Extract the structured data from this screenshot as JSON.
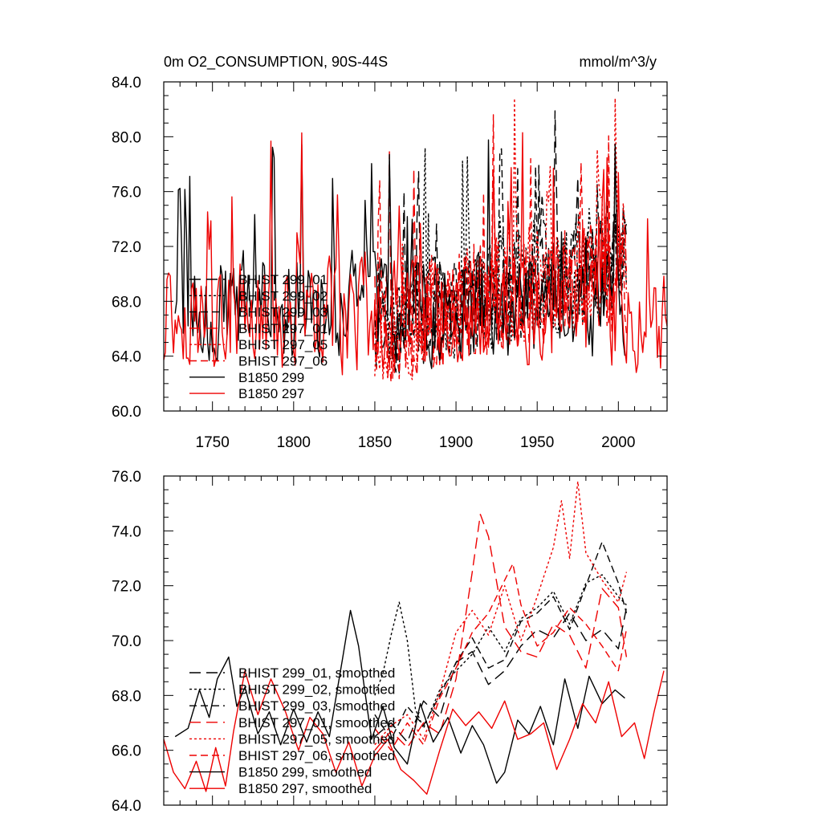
{
  "chart_data": [
    {
      "type": "line",
      "title_left": "0m O2_CONSUMPTION, 90S-44S",
      "title_right": "mmol/m^3/y",
      "xlim": [
        1720,
        2030
      ],
      "ylim": [
        60,
        84
      ],
      "xticks": [
        1750,
        1800,
        1850,
        1900,
        1950,
        2000
      ],
      "yticks": [
        60,
        64,
        68,
        72,
        76,
        80,
        84
      ],
      "ytick_labels": [
        "60.0",
        "64.0",
        "68.0",
        "72.0",
        "76.0",
        "80.0",
        "84.0"
      ],
      "xtick_labels": [
        "1750",
        "1800",
        "1850",
        "1900",
        "1950",
        "2000"
      ],
      "legend_position": "lower-left",
      "series": [
        {
          "name": "BHIST 299_01",
          "label": "BHIST 299_01",
          "color": "#000000",
          "dash": "long",
          "start": 1850,
          "end": 2005,
          "base": 66.5,
          "trend": 4.0,
          "amp": 3.2,
          "seed": 11
        },
        {
          "name": "BHIST 299_02",
          "label": "BHIST 299_02",
          "color": "#000000",
          "dash": "dot",
          "start": 1850,
          "end": 2005,
          "base": 66.5,
          "trend": 4.5,
          "amp": 3.2,
          "seed": 23
        },
        {
          "name": "BHIST 299_03",
          "label": "BHIST 299_03",
          "color": "#000000",
          "dash": "medium",
          "start": 1850,
          "end": 2005,
          "base": 66.5,
          "trend": 4.0,
          "amp": 3.2,
          "seed": 37
        },
        {
          "name": "BHIST 297_01",
          "label": "BHIST 297_01",
          "color": "#ee0000",
          "dash": "long",
          "start": 1850,
          "end": 2005,
          "base": 66.0,
          "trend": 4.5,
          "amp": 3.5,
          "seed": 41
        },
        {
          "name": "BHIST 297_05",
          "label": "BHIST 297_05",
          "color": "#ee0000",
          "dash": "dot",
          "start": 1850,
          "end": 2005,
          "base": 66.0,
          "trend": 5.5,
          "amp": 3.8,
          "seed": 53
        },
        {
          "name": "BHIST 297_06",
          "label": "BHIST 297_06",
          "color": "#ee0000",
          "dash": "medium",
          "start": 1850,
          "end": 2005,
          "base": 66.0,
          "trend": 4.0,
          "amp": 3.5,
          "seed": 67
        },
        {
          "name": "B1850 299",
          "label": "B1850 299",
          "color": "#000000",
          "dash": "solid",
          "start": 1727,
          "end": 2004,
          "base": 67.5,
          "trend": 0.0,
          "amp": 3.2,
          "seed": 79
        },
        {
          "name": "B1850 297",
          "label": "B1850 297",
          "color": "#ee0000",
          "dash": "solid",
          "start": 1720,
          "end": 2030,
          "base": 66.8,
          "trend": 0.0,
          "amp": 3.3,
          "seed": 97
        }
      ]
    },
    {
      "type": "line",
      "xlim": [
        1720,
        2030
      ],
      "ylim": [
        64,
        76
      ],
      "xticks": [
        1750,
        1800,
        1850,
        1900,
        1950,
        2000
      ],
      "yticks": [
        64,
        66,
        68,
        70,
        72,
        74,
        76
      ],
      "ytick_labels": [
        "64.0",
        "66.0",
        "68.0",
        "70.0",
        "72.0",
        "74.0",
        "76.0"
      ],
      "legend_position": "lower-left",
      "series": [
        {
          "name": "BHIST 299_01, smoothed",
          "label": "BHIST 299_01, smoothed",
          "color": "#000000",
          "dash": "long",
          "x": [
            1850,
            1860,
            1870,
            1880,
            1890,
            1900,
            1910,
            1920,
            1930,
            1940,
            1950,
            1960,
            1970,
            1980,
            1990,
            2000,
            2005
          ],
          "y": [
            66.5,
            67.0,
            66.3,
            67.8,
            67.2,
            69.2,
            69.6,
            68.4,
            68.9,
            69.8,
            70.4,
            70.1,
            71.0,
            70.0,
            70.4,
            69.7,
            71.2
          ]
        },
        {
          "name": "BHIST 299_02, smoothed",
          "label": "BHIST 299_02, smoothed",
          "color": "#000000",
          "dash": "dot",
          "x": [
            1850,
            1855,
            1860,
            1865,
            1870,
            1875,
            1880,
            1890,
            1900,
            1910,
            1920,
            1930,
            1940,
            1950,
            1960,
            1970,
            1980,
            1990,
            2000,
            2005
          ],
          "y": [
            68.0,
            68.8,
            70.2,
            71.4,
            70.0,
            67.5,
            66.8,
            68.2,
            68.9,
            69.5,
            70.5,
            69.6,
            70.8,
            71.2,
            71.8,
            70.6,
            72.1,
            72.4,
            71.6,
            71.3
          ]
        },
        {
          "name": "BHIST 299_03, smoothed",
          "label": "BHIST 299_03, smoothed",
          "color": "#000000",
          "dash": "medium",
          "x": [
            1850,
            1860,
            1870,
            1880,
            1890,
            1900,
            1910,
            1920,
            1930,
            1940,
            1950,
            1960,
            1970,
            1980,
            1990,
            2000,
            2005
          ],
          "y": [
            67.3,
            66.4,
            67.6,
            66.9,
            68.0,
            69.2,
            70.1,
            69.0,
            69.3,
            70.7,
            71.0,
            71.6,
            70.4,
            72.0,
            73.6,
            72.1,
            71.0
          ]
        },
        {
          "name": "BHIST 297_01, smoothed",
          "label": "BHIST 297_01, smoothed",
          "color": "#ee0000",
          "dash": "long",
          "x": [
            1850,
            1860,
            1870,
            1880,
            1890,
            1900,
            1910,
            1915,
            1920,
            1930,
            1940,
            1950,
            1960,
            1970,
            1980,
            1990,
            2000,
            2005
          ],
          "y": [
            66.0,
            66.7,
            66.1,
            67.0,
            66.6,
            68.6,
            72.5,
            74.6,
            73.8,
            70.5,
            69.6,
            69.4,
            70.6,
            70.2,
            69.0,
            71.9,
            71.2,
            69.4
          ]
        },
        {
          "name": "BHIST 297_05, smoothed",
          "label": "BHIST 297_05, smoothed",
          "color": "#ee0000",
          "dash": "dot",
          "x": [
            1850,
            1860,
            1870,
            1880,
            1890,
            1900,
            1910,
            1920,
            1930,
            1940,
            1950,
            1960,
            1965,
            1970,
            1975,
            1980,
            1990,
            2000,
            2005
          ],
          "y": [
            66.2,
            66.9,
            67.3,
            66.4,
            68.1,
            70.3,
            71.1,
            70.2,
            72.0,
            70.0,
            71.6,
            73.4,
            75.1,
            73.0,
            75.8,
            73.2,
            72.2,
            71.4,
            72.5
          ]
        },
        {
          "name": "BHIST 297_06, smoothed",
          "label": "BHIST 297_06, smoothed",
          "color": "#ee0000",
          "dash": "medium",
          "x": [
            1850,
            1860,
            1870,
            1880,
            1890,
            1900,
            1910,
            1920,
            1930,
            1935,
            1940,
            1950,
            1960,
            1970,
            1980,
            1990,
            2000,
            2005
          ],
          "y": [
            66.8,
            66.0,
            67.0,
            66.2,
            67.9,
            69.0,
            70.3,
            71.0,
            72.2,
            72.8,
            71.3,
            69.8,
            70.3,
            71.2,
            70.6,
            69.8,
            68.9,
            70.4
          ]
        },
        {
          "name": "B1850 299, smoothed",
          "label": "B1850 299, smoothed",
          "color": "#000000",
          "dash": "solid",
          "x": [
            1727,
            1735,
            1742,
            1748,
            1753,
            1760,
            1765,
            1770,
            1778,
            1785,
            1792,
            1800,
            1808,
            1815,
            1822,
            1830,
            1835,
            1840,
            1848,
            1855,
            1862,
            1870,
            1878,
            1886,
            1895,
            1903,
            1910,
            1917,
            1925,
            1930,
            1938,
            1945,
            1952,
            1960,
            1967,
            1975,
            1982,
            1990,
            1998,
            2004
          ],
          "y": [
            66.5,
            66.8,
            68.2,
            67.2,
            68.6,
            69.4,
            67.6,
            68.3,
            66.6,
            67.4,
            66.2,
            67.5,
            66.3,
            67.4,
            66.5,
            69.3,
            71.1,
            69.8,
            66.4,
            67.6,
            66.1,
            65.5,
            67.7,
            66.3,
            67.2,
            65.9,
            66.9,
            66.2,
            64.8,
            65.2,
            67.1,
            66.6,
            67.6,
            66.2,
            68.6,
            66.8,
            68.7,
            67.7,
            68.2,
            67.9
          ]
        },
        {
          "name": "B1850 297, smoothed",
          "label": "B1850 297, smoothed",
          "color": "#ee0000",
          "dash": "solid",
          "x": [
            1720,
            1726,
            1733,
            1740,
            1746,
            1752,
            1758,
            1763,
            1770,
            1778,
            1786,
            1795,
            1803,
            1810,
            1818,
            1826,
            1834,
            1842,
            1850,
            1858,
            1866,
            1874,
            1882,
            1890,
            1898,
            1906,
            1914,
            1922,
            1930,
            1938,
            1946,
            1954,
            1962,
            1970,
            1978,
            1986,
            1994,
            2002,
            2010,
            2016,
            2022,
            2028
          ],
          "y": [
            66.4,
            65.2,
            64.6,
            65.6,
            64.5,
            66.1,
            64.7,
            66.7,
            68.9,
            67.3,
            68.6,
            67.4,
            66.0,
            67.2,
            66.6,
            65.2,
            66.3,
            64.7,
            65.8,
            66.4,
            65.3,
            64.9,
            64.4,
            66.0,
            67.5,
            66.9,
            67.4,
            66.8,
            67.8,
            66.4,
            66.6,
            67.0,
            65.3,
            66.4,
            67.7,
            67.0,
            68.5,
            66.5,
            67.0,
            65.7,
            67.4,
            68.9
          ]
        }
      ]
    }
  ]
}
